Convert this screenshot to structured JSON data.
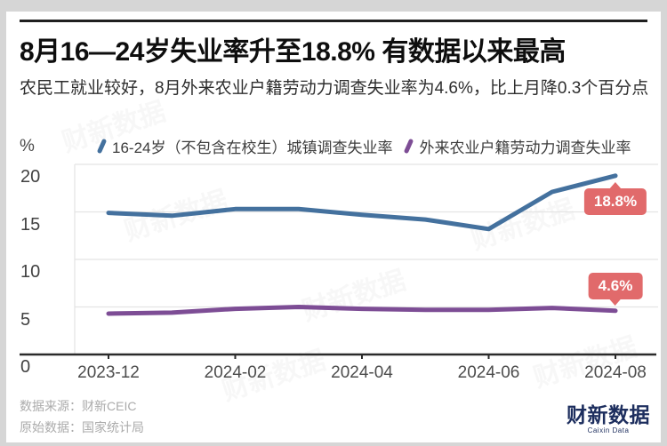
{
  "header": {
    "title": "8月16—24岁失业率升至18.8% 有数据以来最高",
    "subtitle": "农民工就业较好，8月外来农业户籍劳动力调查失业率为4.6%，比上月降0.3个百分点"
  },
  "chart_data": {
    "type": "line",
    "x": [
      "2023-12",
      "2024-01",
      "2024-02",
      "2024-03",
      "2024-04",
      "2024-05",
      "2024-06",
      "2024-07",
      "2024-08"
    ],
    "x_tick_labels": [
      "2023-12",
      "2024-02",
      "2024-04",
      "2024-06",
      "2024-08"
    ],
    "yticks": [
      0,
      5,
      10,
      15,
      20
    ],
    "ylim": [
      0,
      20
    ],
    "y_unit": "%",
    "grid": true,
    "legend_position": "top",
    "series": [
      {
        "name": "16-24岁（不包含在校生）城镇调查失业率",
        "color": "#44719e",
        "values": [
          14.9,
          14.6,
          15.3,
          15.3,
          14.7,
          14.2,
          13.2,
          17.1,
          18.8
        ]
      },
      {
        "name": "外来农业户籍劳动力调查失业率",
        "color": "#7d4d95",
        "values": [
          4.3,
          4.4,
          4.8,
          5.0,
          4.8,
          4.7,
          4.7,
          4.9,
          4.6
        ]
      }
    ],
    "annotations": [
      {
        "text": "18.8%",
        "series": 0,
        "color": "#e16a6b",
        "position": "below-end"
      },
      {
        "text": "4.6%",
        "series": 1,
        "color": "#e16a6b",
        "position": "above-end"
      }
    ]
  },
  "footer": {
    "source_line1": "数据来源：财新CEIC",
    "source_line2": "原始数据：国家统计局",
    "logo_text": "财新数据",
    "logo_subtext": "Caixin Data",
    "logo_color": "#1d2e5e"
  },
  "colors": {
    "axis": "#2a2a2a",
    "grid": "#e4e4e4",
    "badge": "#e16a6b"
  }
}
